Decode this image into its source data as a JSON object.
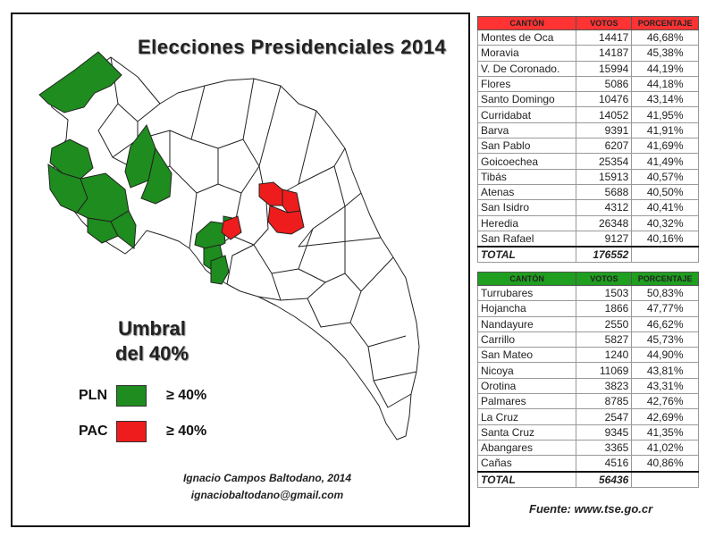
{
  "map": {
    "title": "Elecciones Presidenciales 2014",
    "umbral_line1": "Umbral",
    "umbral_line2": "del 40%",
    "legend": [
      {
        "party": "PLN",
        "threshold": "≥ 40%",
        "color": "#1e8c1e"
      },
      {
        "party": "PAC",
        "threshold": "≥ 40%",
        "color": "#ee1c1c"
      }
    ],
    "credit_name": "Ignacio Campos Baltodano, 2014",
    "credit_email": "ignaciobaltodano@gmail.com",
    "colors": {
      "pln": "#1e8c1e",
      "pac": "#ee1c1c",
      "other": "#ffffff",
      "border": "#222222"
    }
  },
  "pac_table": {
    "header": {
      "canton": "CANTÓN",
      "votos": "VOTOS",
      "porcentaje": "PORCENTAJE"
    },
    "header_color": "#ff3333",
    "rows": [
      {
        "canton": "Montes de Oca",
        "votos": "14417",
        "porcentaje": "46,68%"
      },
      {
        "canton": "Moravia",
        "votos": "14187",
        "porcentaje": "45,38%"
      },
      {
        "canton": "V. De Coronado.",
        "votos": "15994",
        "porcentaje": "44,19%"
      },
      {
        "canton": "Flores",
        "votos": "5086",
        "porcentaje": "44,18%"
      },
      {
        "canton": "Santo Domingo",
        "votos": "10476",
        "porcentaje": "43,14%"
      },
      {
        "canton": "Curridabat",
        "votos": "14052",
        "porcentaje": "41,95%"
      },
      {
        "canton": "Barva",
        "votos": "9391",
        "porcentaje": "41,91%"
      },
      {
        "canton": "San Pablo",
        "votos": "6207",
        "porcentaje": "41,69%"
      },
      {
        "canton": "Goicoechea",
        "votos": "25354",
        "porcentaje": "41,49%"
      },
      {
        "canton": "Tibás",
        "votos": "15913",
        "porcentaje": "40,57%"
      },
      {
        "canton": "Atenas",
        "votos": "5688",
        "porcentaje": "40,50%"
      },
      {
        "canton": "San Isidro",
        "votos": "4312",
        "porcentaje": "40,41%"
      },
      {
        "canton": "Heredia",
        "votos": "26348",
        "porcentaje": "40,32%"
      },
      {
        "canton": "San Rafael",
        "votos": "9127",
        "porcentaje": "40,16%"
      }
    ],
    "total_label": "TOTAL",
    "total_votes": "176552"
  },
  "pln_table": {
    "header": {
      "canton": "CANTÓN",
      "votos": "VOTOS",
      "porcentaje": "PORCENTAJE"
    },
    "header_color": "#1f9e1f",
    "rows": [
      {
        "canton": "Turrubares",
        "votos": "1503",
        "porcentaje": "50,83%"
      },
      {
        "canton": "Hojancha",
        "votos": "1866",
        "porcentaje": "47,77%"
      },
      {
        "canton": "Nandayure",
        "votos": "2550",
        "porcentaje": "46,62%"
      },
      {
        "canton": "Carrillo",
        "votos": "5827",
        "porcentaje": "45,73%"
      },
      {
        "canton": "San Mateo",
        "votos": "1240",
        "porcentaje": "44,90%"
      },
      {
        "canton": "Nicoya",
        "votos": "11069",
        "porcentaje": "43,81%"
      },
      {
        "canton": "Orotina",
        "votos": "3823",
        "porcentaje": "43,31%"
      },
      {
        "canton": "Palmares",
        "votos": "8785",
        "porcentaje": "42,76%"
      },
      {
        "canton": "La Cruz",
        "votos": "2547",
        "porcentaje": "42,69%"
      },
      {
        "canton": "Santa Cruz",
        "votos": "9345",
        "porcentaje": "41,35%"
      },
      {
        "canton": "Abangares",
        "votos": "3365",
        "porcentaje": "41,02%"
      },
      {
        "canton": "Cañas",
        "votos": "4516",
        "porcentaje": "40,86%"
      }
    ],
    "total_label": "TOTAL",
    "total_votes": "56436"
  },
  "source": "Fuente: www.tse.go.cr"
}
